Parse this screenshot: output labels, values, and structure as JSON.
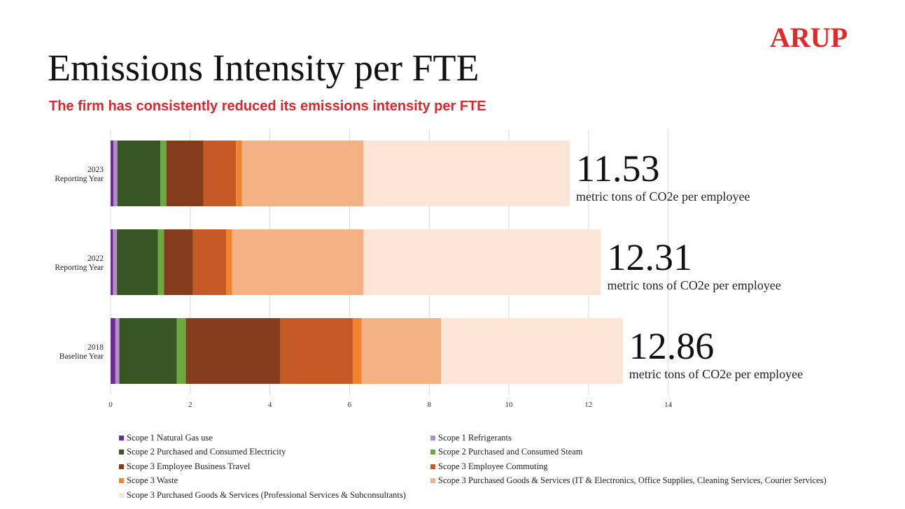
{
  "logo": "ARUP",
  "title": "Emissions Intensity per FTE",
  "subtitle": "The firm has consistently reduced its emissions intensity per FTE",
  "chart_data": {
    "type": "bar",
    "orientation": "horizontal",
    "stacked": true,
    "categories": [
      [
        "2023",
        "Reporting Year"
      ],
      [
        "2022",
        "Reporting Year"
      ],
      [
        "2018",
        "Baseline Year"
      ]
    ],
    "xlim": [
      0,
      14
    ],
    "xticks": [
      0,
      2,
      4,
      6,
      8,
      10,
      12,
      14
    ],
    "grid": true,
    "series": [
      {
        "name": "Scope 1 Natural Gas use",
        "color": "#6a2d8f",
        "values": [
          0.07,
          0.06,
          0.12
        ]
      },
      {
        "name": "Scope 1 Refrigerants",
        "color": "#b48cc8",
        "values": [
          0.1,
          0.1,
          0.1
        ]
      },
      {
        "name": "Scope 2 Purchased and Consumed Electricity",
        "color": "#375623",
        "values": [
          1.08,
          1.03,
          1.44
        ]
      },
      {
        "name": "Scope 2 Purchased and Consumed Steam",
        "color": "#6aaa40",
        "values": [
          0.15,
          0.15,
          0.23
        ]
      },
      {
        "name": "Scope 3 Employee Business Travel",
        "color": "#843c1c",
        "values": [
          0.93,
          0.73,
          2.37
        ]
      },
      {
        "name": "Scope 3 Employee Commuting",
        "color": "#c55a27",
        "values": [
          0.82,
          0.83,
          1.82
        ]
      },
      {
        "name": "Scope 3 Waste",
        "color": "#f0832e",
        "values": [
          0.15,
          0.15,
          0.22
        ]
      },
      {
        "name": "Scope 3 Purchased Goods & Services (IT & Electronics, Office Supplies, Cleaning Services, Courier Services)",
        "color": "#f4b183",
        "values": [
          3.05,
          3.3,
          2.0
        ]
      },
      {
        "name": "Scope 3 Purchased Goods & Services (Professional Services & Subconsultants)",
        "color": "#fce4d6",
        "values": [
          5.18,
          5.96,
          4.56
        ]
      }
    ],
    "totals": [
      "11.53",
      "12.31",
      "12.86"
    ],
    "total_unit": "metric tons of CO2e per employee"
  }
}
